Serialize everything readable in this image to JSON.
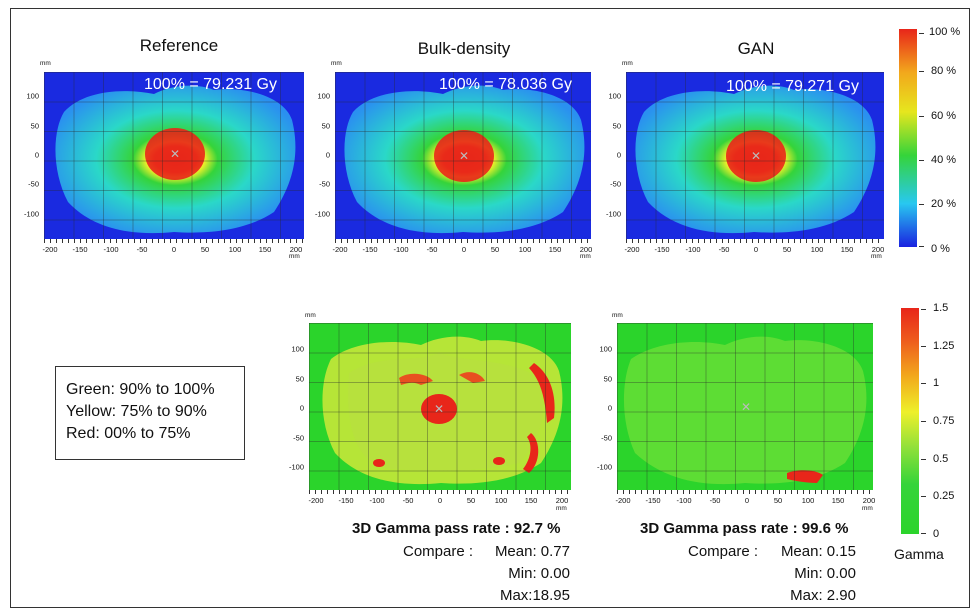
{
  "panels": {
    "reference": {
      "title": "Reference",
      "dose_label": "100% = 79.231 Gy"
    },
    "bulk": {
      "title": "Bulk-density",
      "dose_label": "100% = 78.036 Gy"
    },
    "gan": {
      "title": "GAN",
      "dose_label": "100% = 79.271 Gy"
    }
  },
  "axis": {
    "unit": "mm",
    "x_ticks": [
      "-200",
      "-150",
      "-100",
      "-50",
      "0",
      "50",
      "100",
      "150",
      "200"
    ],
    "y_ticks": [
      "100",
      "50",
      "0",
      "-50",
      "-100"
    ]
  },
  "dose_colorbar": {
    "labels": [
      "100 %",
      "80 %",
      "60 %",
      "40 %",
      "20 %",
      "0 %"
    ],
    "colors": [
      "#e8261a",
      "#f2a81c",
      "#e6e61e",
      "#35d43a",
      "#28c8f0",
      "#1a22e0"
    ]
  },
  "gamma_colorbar": {
    "labels": [
      "1.5",
      "1.25",
      "1",
      "0.75",
      "0.5",
      "0.25",
      "0"
    ],
    "title": "Gamma",
    "colors": [
      "#e8261a",
      "#f2a81c",
      "#eef02a",
      "#35d43a"
    ]
  },
  "legend": {
    "lines": [
      "Green: 90% to 100%",
      "Yellow: 75% to 90%",
      "Red: 00% to 75%"
    ]
  },
  "gamma_bulk": {
    "pass_rate": "3D Gamma pass rate : 92.7 %",
    "compare_label": "Compare :",
    "mean": "Mean: 0.77",
    "min": "Min: 0.00",
    "max": "Max:18.95"
  },
  "gamma_gan": {
    "pass_rate": "3D Gamma pass rate : 99.6 %",
    "compare_label": "Compare :",
    "mean": "Mean: 0.15",
    "min": "Min: 0.00",
    "max": "Max: 2.90"
  }
}
